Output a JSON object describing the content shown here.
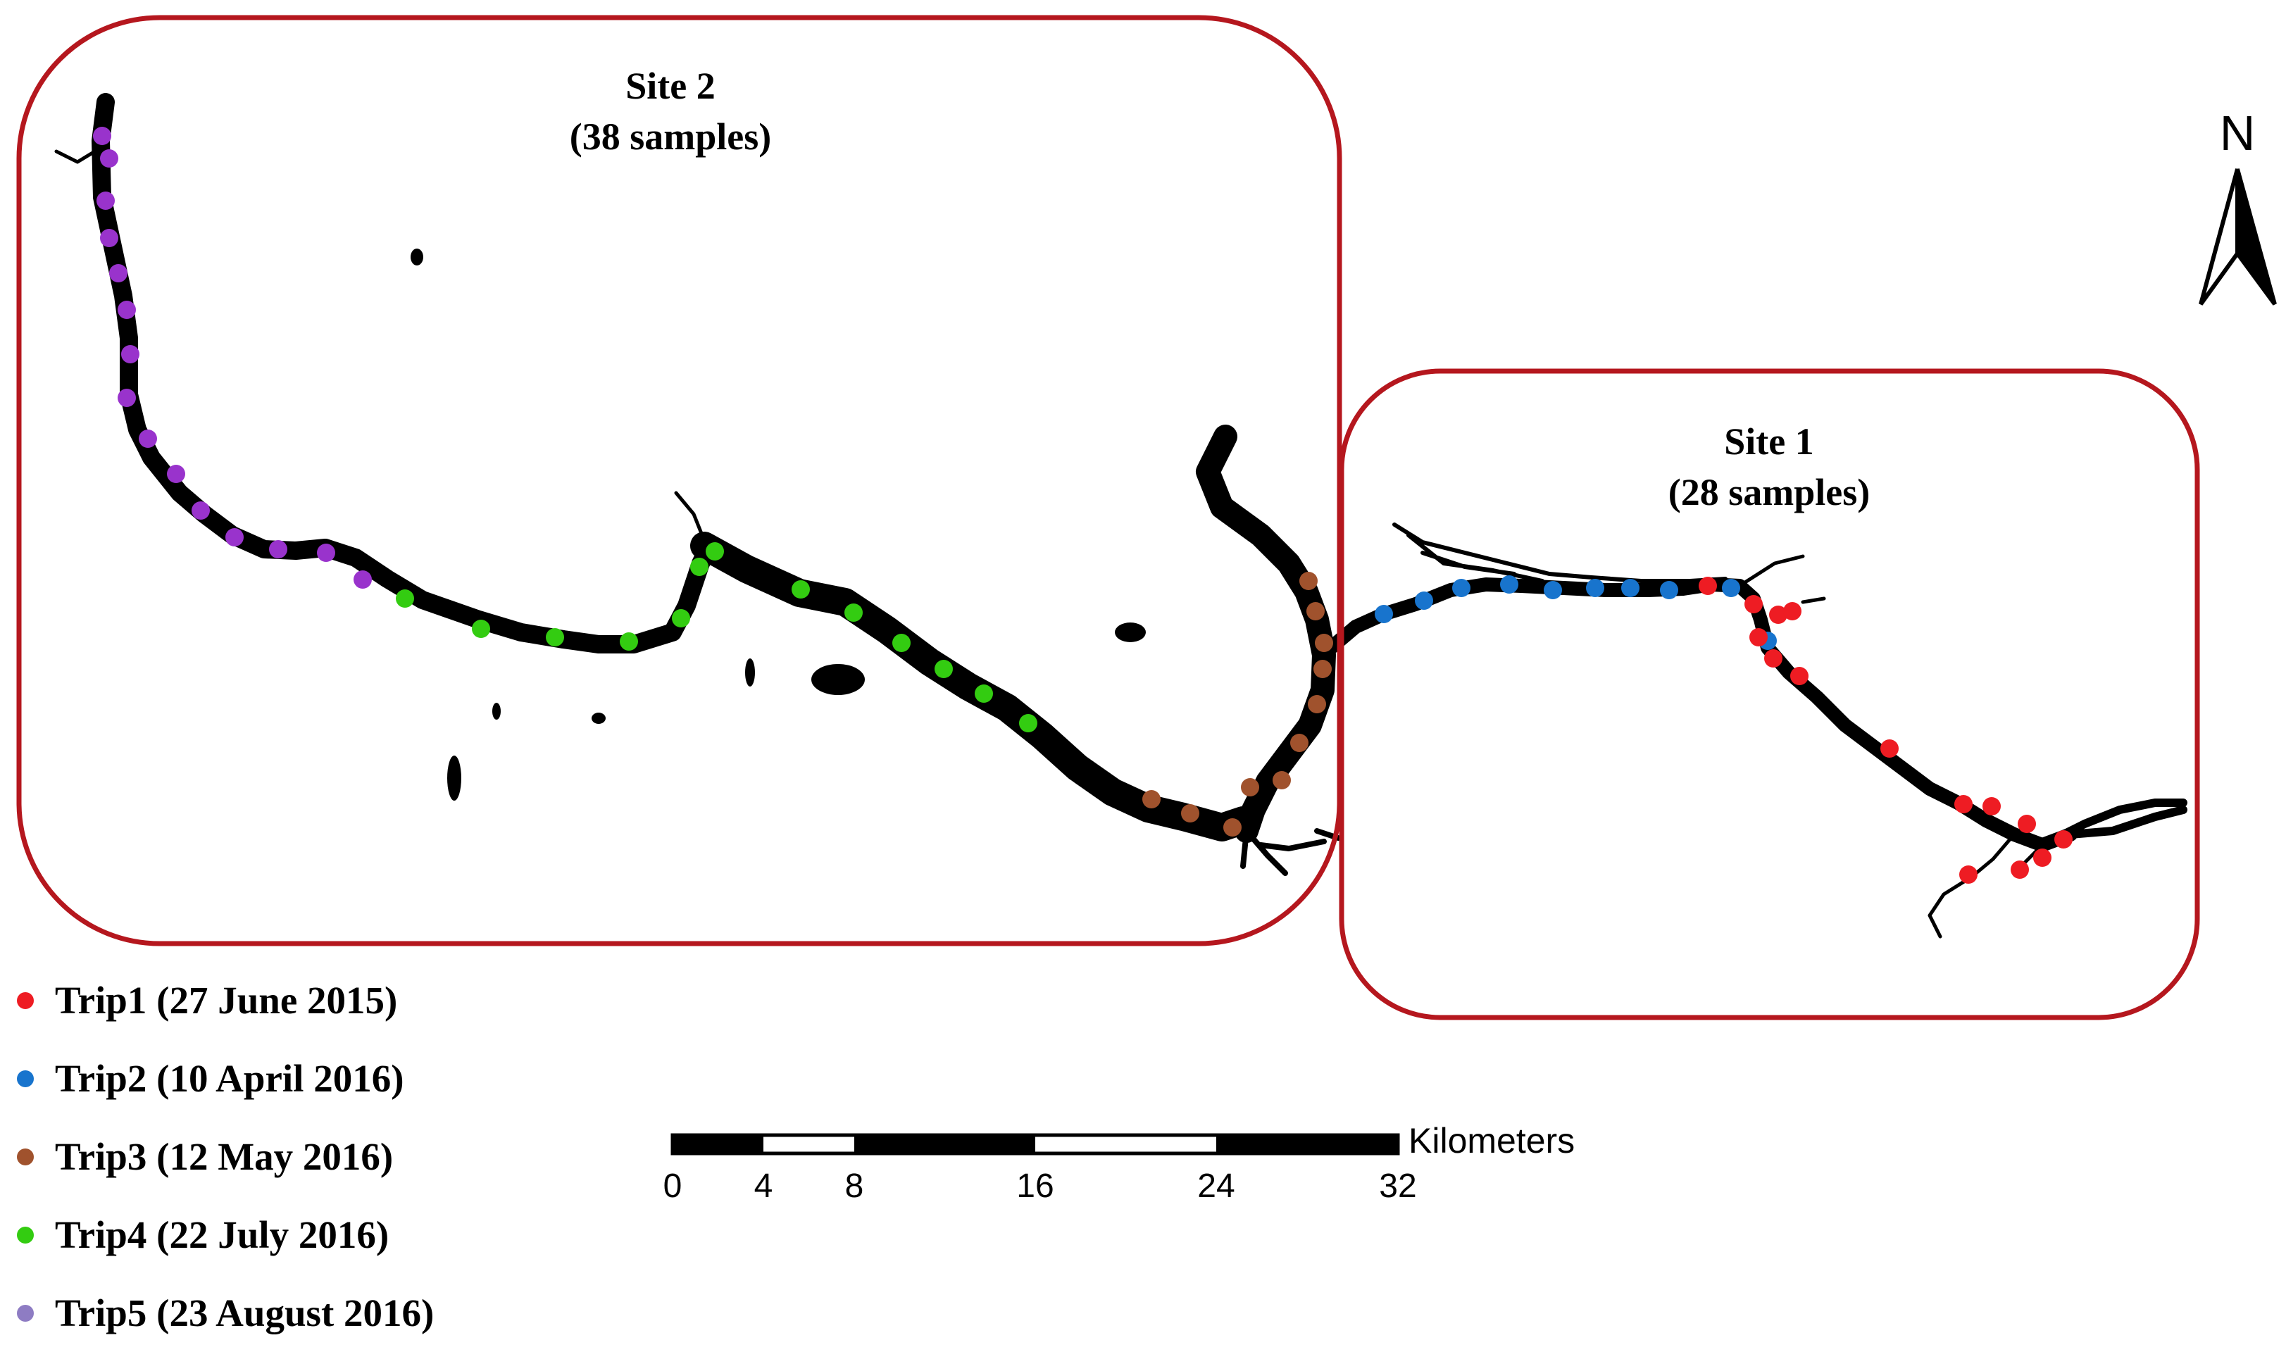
{
  "sites": [
    {
      "title": "Site 2",
      "subtitle": "(38 samples)"
    },
    {
      "title": "Site 1",
      "subtitle": "(28 samples)"
    }
  ],
  "colors": {
    "site_border": "#b5171e",
    "river": "#000000",
    "trip1": "#ee1c23",
    "trip2": "#1874cd",
    "trip3": "#a0522d",
    "trip4": "#33cc11",
    "trip5": "#9933cc",
    "trip5_legend": "#8e7cc3"
  },
  "legend": [
    {
      "label": "Trip1 (27 June 2015)",
      "color": "#ee1c23"
    },
    {
      "label": "Trip2 (10 April 2016)",
      "color": "#1874cd"
    },
    {
      "label": "Trip3 (12 May 2016)",
      "color": "#a0522d"
    },
    {
      "label": "Trip4 (22 July 2016)",
      "color": "#33cc11"
    },
    {
      "label": "Trip5 (23 August 2016)",
      "color": "#8e7cc3"
    }
  ],
  "scale_bar": {
    "ticks": [
      "0",
      "4",
      "8",
      "16",
      "24",
      "32"
    ],
    "unit": "Kilometers"
  },
  "north_arrow": {
    "letter": "N"
  },
  "samples": {
    "trip1_count": 19,
    "trip2_count": 9,
    "trip3_count": 10,
    "trip4_count": 13,
    "trip5_count": 15
  }
}
